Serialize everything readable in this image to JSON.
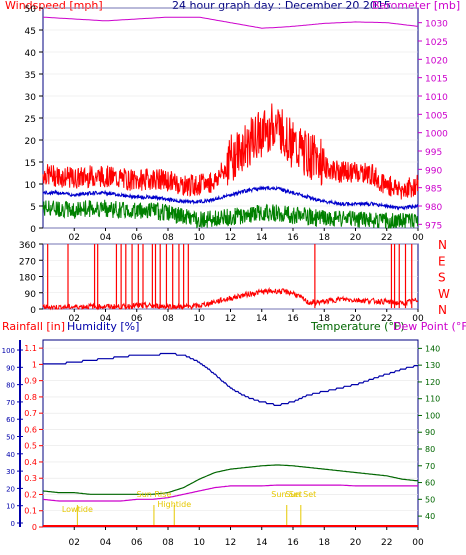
{
  "colors": {
    "wind_speed": "#ff0000",
    "wind_gust": "#ff0000",
    "wind_avg": "#0000cc",
    "wind_min": "#008000",
    "barometer": "#cc00cc",
    "direction": "#ff0000",
    "humidity": "#0000aa",
    "temperature": "#006600",
    "dewpoint": "#cc00cc",
    "rainfall": "#ff0000",
    "events": "#e6c800",
    "axis": "#000000",
    "frame": "#000080"
  },
  "chart_data": [
    {
      "type": "line",
      "panel": "wind-barometer",
      "title": "24 hour graph day : December 20 2015",
      "left_label": "Windspeed [mph]",
      "right_label": "Barometer [mb]",
      "x_ticks": [
        "02",
        "04",
        "06",
        "08",
        "10",
        "12",
        "14",
        "16",
        "18",
        "20",
        "22",
        "00"
      ],
      "y_left_ticks": [
        "0",
        "5",
        "10",
        "15",
        "20",
        "25",
        "30",
        "35",
        "40",
        "45",
        "50"
      ],
      "y_left_range": [
        0,
        50
      ],
      "y_right_ticks": [
        "975",
        "980",
        "985",
        "990",
        "995",
        "1000",
        "1005",
        "1010",
        "1015",
        "1020",
        "1025",
        "1030"
      ],
      "y_right_range": [
        974,
        1034
      ],
      "series": [
        {
          "name": "Windspeed",
          "x": [
            0,
            1,
            2,
            3,
            4,
            5,
            6,
            7,
            8,
            9,
            10,
            11,
            12,
            13,
            14,
            15,
            16,
            17,
            18,
            19,
            20,
            21,
            22,
            23,
            24
          ],
          "values": [
            11.5,
            11,
            10.5,
            11,
            11,
            10.5,
            10,
            10.5,
            10,
            9,
            9,
            10,
            14,
            17,
            20,
            22,
            17,
            15,
            13,
            12,
            12,
            11.5,
            9,
            8,
            9
          ]
        },
        {
          "name": "Average",
          "x": [
            0,
            1,
            2,
            3,
            4,
            5,
            6,
            7,
            8,
            9,
            10,
            11,
            12,
            13,
            14,
            15,
            16,
            17,
            18,
            19,
            20,
            21,
            22,
            23,
            24
          ],
          "values": [
            8,
            8,
            7.5,
            8,
            8,
            7.5,
            7,
            7,
            6.5,
            6,
            6,
            6.5,
            7.5,
            8.5,
            9,
            9,
            8,
            7,
            6,
            5.5,
            5.5,
            5.5,
            5,
            4.5,
            5
          ]
        },
        {
          "name": "Minimum",
          "x": [
            0,
            1,
            2,
            3,
            4,
            5,
            6,
            7,
            8,
            9,
            10,
            11,
            12,
            13,
            14,
            15,
            16,
            17,
            18,
            19,
            20,
            21,
            22,
            23,
            24
          ],
          "values": [
            4.5,
            4.5,
            4,
            4.5,
            4.5,
            4,
            4,
            4,
            3.5,
            2.5,
            2,
            2,
            2.5,
            3,
            3.5,
            3.5,
            3,
            2.5,
            2,
            2,
            2,
            2,
            1.5,
            1.5,
            2
          ]
        },
        {
          "name": "Barometer",
          "x": [
            0,
            2,
            4,
            6,
            8,
            10,
            12,
            14,
            15,
            16,
            18,
            20,
            22,
            24
          ],
          "values": [
            1031.5,
            1031,
            1030.5,
            1031,
            1031.5,
            1031.5,
            1030,
            1028.5,
            1028.7,
            1029,
            1029.8,
            1030.2,
            1030,
            1029
          ]
        }
      ]
    },
    {
      "type": "line",
      "panel": "wind-direction",
      "x_ticks": [
        "02",
        "04",
        "06",
        "08",
        "10",
        "12",
        "14",
        "16",
        "18",
        "20",
        "22",
        "00"
      ],
      "y_left_ticks": [
        "0",
        "90",
        "180",
        "270",
        "360"
      ],
      "y_range": [
        0,
        360
      ],
      "y_right_ticks": [
        "N",
        "W",
        "S",
        "E",
        "N"
      ],
      "series": [
        {
          "name": "Direction",
          "x": [
            0,
            1,
            2,
            3,
            4,
            5,
            6,
            7,
            8,
            9,
            10,
            11,
            12,
            13,
            14,
            15,
            16,
            17,
            18,
            19,
            20,
            21,
            22,
            23,
            24
          ],
          "values": [
            12,
            10,
            12,
            15,
            14,
            12,
            20,
            18,
            15,
            12,
            18,
            40,
            60,
            80,
            95,
            100,
            90,
            35,
            40,
            55,
            50,
            45,
            40,
            30,
            50
          ]
        }
      ],
      "spike_hours": [
        0.3,
        1.6,
        3.3,
        3.5,
        4.7,
        5.0,
        5.3,
        5.7,
        6.1,
        6.4,
        7.0,
        7.2,
        7.5,
        7.9,
        8.3,
        8.7,
        9.0,
        9.3,
        17.4,
        22.3,
        22.5,
        22.8,
        23.2,
        23.6
      ]
    },
    {
      "type": "line",
      "panel": "humidity-temperature",
      "labels": {
        "rainfall": "Rainfall [in]",
        "humidity": "Humidity [%]",
        "temperature": "Temperature (°F)",
        "dewpoint": "Dew Point (°F)"
      },
      "x_ticks": [
        "02",
        "04",
        "06",
        "08",
        "10",
        "12",
        "14",
        "16",
        "18",
        "20",
        "22",
        "00"
      ],
      "y_humidity_ticks": [
        "0",
        "10",
        "20",
        "30",
        "40",
        "50",
        "60",
        "70",
        "80",
        "90",
        "100"
      ],
      "y_humidity_range": [
        0,
        100
      ],
      "y_rain_ticks": [
        "0",
        "0.1",
        "0.2",
        "0.3",
        "0.4",
        "0.5",
        "0.6",
        "0.7",
        "0.8",
        "0.9",
        "1",
        "1.1"
      ],
      "y_rain_range": [
        0,
        1.15
      ],
      "y_temp_ticks": [
        "40",
        "50",
        "60",
        "70",
        "80",
        "90",
        "100",
        "110",
        "120",
        "130",
        "140"
      ],
      "y_temp_range": [
        33.5,
        145
      ],
      "series": [
        {
          "name": "Humidity",
          "x": [
            0,
            1,
            2,
            3,
            4,
            5,
            6,
            7,
            8,
            9,
            10,
            11,
            12,
            13,
            14,
            15,
            16,
            17,
            18,
            19,
            20,
            21,
            22,
            23,
            24
          ],
          "values": [
            92,
            92,
            93,
            94,
            95,
            96,
            97,
            97,
            98,
            97,
            93,
            86,
            78,
            73,
            70,
            68,
            70,
            74,
            76,
            78,
            80,
            83,
            86,
            89,
            91
          ]
        },
        {
          "name": "Temperature",
          "x": [
            0,
            1,
            2,
            3,
            4,
            5,
            6,
            7,
            8,
            9,
            10,
            11,
            12,
            13,
            14,
            15,
            16,
            17,
            18,
            19,
            20,
            21,
            22,
            23,
            24
          ],
          "values": [
            55,
            54,
            54,
            53,
            53,
            53,
            53,
            53,
            54,
            57,
            62,
            66,
            68,
            69,
            70,
            70.5,
            70,
            69,
            68,
            67,
            66,
            65,
            64,
            62,
            61
          ]
        },
        {
          "name": "Dew Point",
          "x": [
            0,
            1,
            2,
            3,
            4,
            5,
            6,
            7,
            8,
            9,
            10,
            11,
            12,
            13,
            14,
            15,
            16,
            17,
            18,
            19,
            20,
            21,
            22,
            23,
            24
          ],
          "values": [
            50,
            49,
            49,
            49,
            49,
            49,
            50,
            50,
            51,
            53,
            55,
            57,
            58,
            58,
            58,
            58.5,
            58.5,
            58.5,
            58.5,
            58.5,
            58,
            58,
            58,
            58,
            58
          ]
        },
        {
          "name": "Rainfall",
          "x": [
            0,
            24
          ],
          "values": [
            0,
            0
          ]
        }
      ],
      "events": [
        {
          "label": "Lowtide",
          "hour": 2.2
        },
        {
          "label": "Sun Rise",
          "hour": 7.1
        },
        {
          "label": "Hightide",
          "hour": 8.4
        },
        {
          "label": "Sun Set",
          "hour": 15.6
        },
        {
          "label": "Sun Set",
          "hour": 16.5
        }
      ]
    }
  ]
}
